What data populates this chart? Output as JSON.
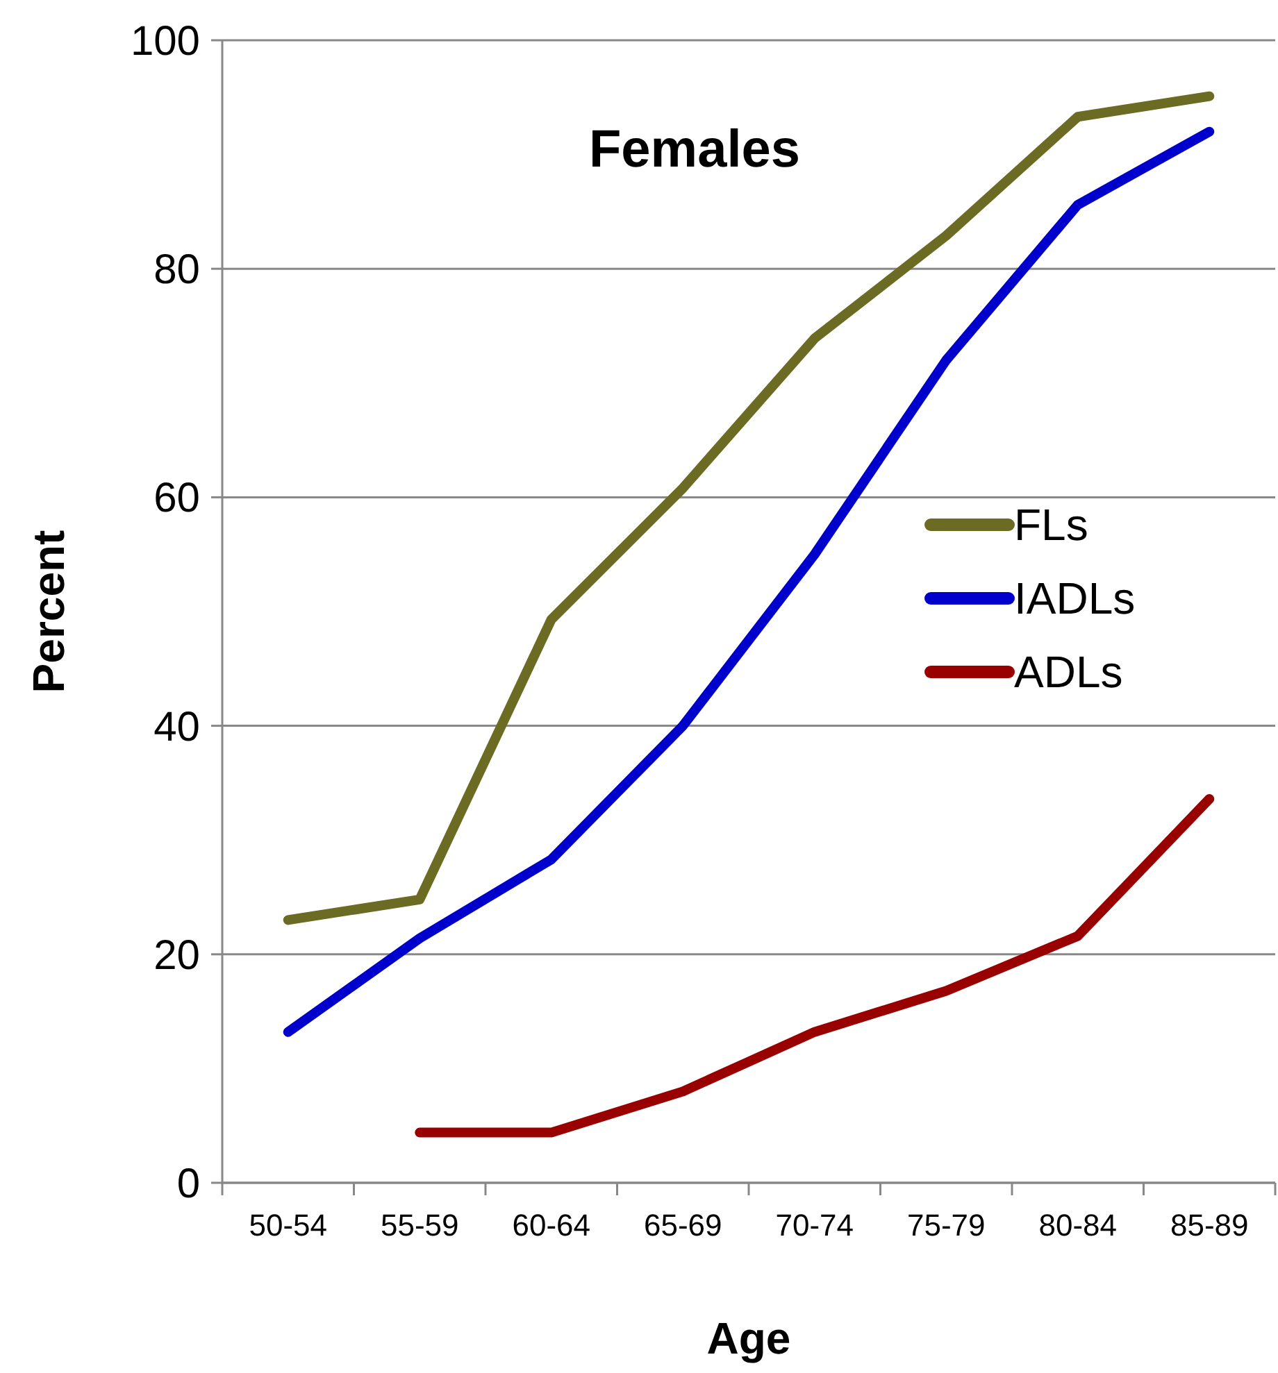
{
  "chart_data": {
    "type": "line",
    "title": "Females",
    "xlabel": "Age",
    "ylabel": "Percent",
    "categories": [
      "50-54",
      "55-59",
      "60-64",
      "65-69",
      "70-74",
      "75-79",
      "80-84",
      "85-89"
    ],
    "series": [
      {
        "name": "FLs",
        "color": "#6b6b23",
        "values": [
          23,
          24.8,
          49.3,
          60.8,
          73.9,
          82.9,
          93.3,
          95.1
        ]
      },
      {
        "name": "IADLs",
        "color": "#0000cc",
        "values": [
          13.2,
          21.4,
          28.3,
          40,
          55,
          72,
          85.6,
          92
        ]
      },
      {
        "name": "ADLs",
        "color": "#990000",
        "values": [
          null,
          4.4,
          4.4,
          8,
          13.2,
          16.8,
          21.6,
          33.6
        ]
      }
    ],
    "ylim": [
      0,
      100
    ],
    "yticks": [
      0,
      20,
      40,
      60,
      80,
      100
    ],
    "grid": "y",
    "legend": "right",
    "marker": "none",
    "line_style": "solid"
  }
}
